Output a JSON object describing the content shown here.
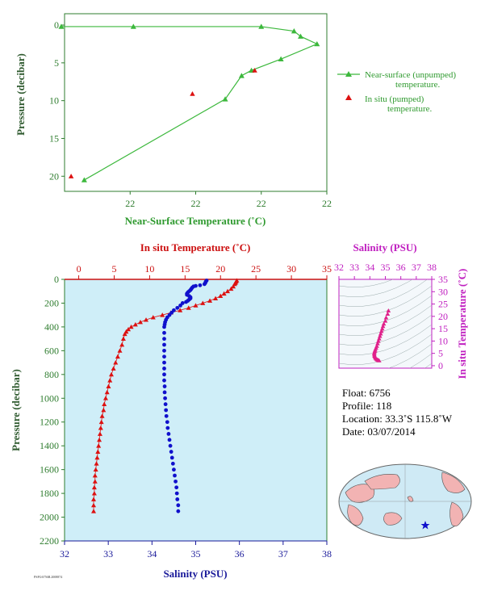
{
  "chart_data": [
    {
      "type": "line",
      "xlabel": "Near-Surface Temperature (˚C)",
      "ylabel": "Pressure (decibar)",
      "x_tick_labels": [
        "22",
        "22",
        "22",
        "22"
      ],
      "x_range": [
        22.0,
        22.8
      ],
      "y_ticks": [
        0,
        5,
        10,
        15,
        20
      ],
      "ylim": [
        22,
        -1.5
      ],
      "series": [
        {
          "name": "Near-surface (unpumped) temperature.",
          "color": "#3cb83c",
          "marker": "triangle",
          "points": [
            [
              21.99,
              0.2
            ],
            [
              22.21,
              0.2
            ],
            [
              22.6,
              0.2
            ],
            [
              22.7,
              0.8
            ],
            [
              22.72,
              1.5
            ],
            [
              22.77,
              2.5
            ],
            [
              22.66,
              4.5
            ],
            [
              22.57,
              6
            ],
            [
              22.54,
              6.7
            ],
            [
              22.49,
              9.8
            ],
            [
              22.06,
              20.5
            ]
          ]
        },
        {
          "name": "In situ (pumped) temperature.",
          "color": "#dd1111",
          "marker": "triangle",
          "points": [
            [
              22.39,
              9.1
            ],
            [
              22.02,
              20
            ],
            [
              22.58,
              6
            ]
          ]
        }
      ]
    },
    {
      "type": "scatter",
      "ylabel": "Pressure (decibar)",
      "top_axis_label": "In situ Temperature (˚C)",
      "bottom_axis_label": "Salinity (PSU)",
      "temp_ticks": [
        0,
        5,
        10,
        15,
        20,
        25,
        30,
        35
      ],
      "sal_ticks": [
        32,
        33,
        34,
        35,
        36,
        37,
        38
      ],
      "pressure_ticks": [
        0,
        200,
        400,
        600,
        800,
        1000,
        1200,
        1400,
        1600,
        1800,
        2000,
        2200
      ],
      "temp_range": [
        -2,
        35
      ],
      "sal_range": [
        32,
        38
      ],
      "pressure_range": [
        0,
        2200
      ],
      "temperature_series": {
        "color": "#dd1111",
        "points": [
          [
            22.3,
            10
          ],
          [
            22.2,
            20
          ],
          [
            22.1,
            30
          ],
          [
            22.0,
            40
          ],
          [
            21.8,
            60
          ],
          [
            21.5,
            80
          ],
          [
            21.0,
            100
          ],
          [
            20.5,
            120
          ],
          [
            20.0,
            140
          ],
          [
            19.3,
            160
          ],
          [
            18.5,
            180
          ],
          [
            17.5,
            200
          ],
          [
            16.5,
            220
          ],
          [
            15.5,
            240
          ],
          [
            14.3,
            260
          ],
          [
            13.0,
            280
          ],
          [
            11.8,
            300
          ],
          [
            10.5,
            320
          ],
          [
            9.5,
            340
          ],
          [
            8.7,
            360
          ],
          [
            8.0,
            380
          ],
          [
            7.4,
            400
          ],
          [
            7.0,
            420
          ],
          [
            6.7,
            440
          ],
          [
            6.5,
            460
          ],
          [
            6.3,
            500
          ],
          [
            6.1,
            550
          ],
          [
            5.8,
            600
          ],
          [
            5.5,
            650
          ],
          [
            5.2,
            700
          ],
          [
            4.9,
            750
          ],
          [
            4.6,
            800
          ],
          [
            4.4,
            850
          ],
          [
            4.2,
            900
          ],
          [
            4.0,
            950
          ],
          [
            3.8,
            1000
          ],
          [
            3.6,
            1050
          ],
          [
            3.5,
            1100
          ],
          [
            3.3,
            1150
          ],
          [
            3.2,
            1200
          ],
          [
            3.1,
            1250
          ],
          [
            3.0,
            1300
          ],
          [
            2.9,
            1350
          ],
          [
            2.8,
            1400
          ],
          [
            2.7,
            1450
          ],
          [
            2.6,
            1500
          ],
          [
            2.5,
            1550
          ],
          [
            2.4,
            1600
          ],
          [
            2.3,
            1650
          ],
          [
            2.3,
            1700
          ],
          [
            2.2,
            1750
          ],
          [
            2.2,
            1800
          ],
          [
            2.1,
            1850
          ],
          [
            2.1,
            1900
          ],
          [
            2.1,
            1950
          ]
        ]
      },
      "salinity_series": {
        "color": "#1010cc",
        "points": [
          [
            35.25,
            10
          ],
          [
            35.23,
            20
          ],
          [
            35.22,
            30
          ],
          [
            35.2,
            40
          ],
          [
            35.1,
            50
          ],
          [
            35.0,
            55
          ],
          [
            34.95,
            60
          ],
          [
            34.92,
            70
          ],
          [
            34.9,
            80
          ],
          [
            34.88,
            90
          ],
          [
            34.85,
            100
          ],
          [
            34.82,
            110
          ],
          [
            34.8,
            120
          ],
          [
            34.8,
            130
          ],
          [
            34.85,
            140
          ],
          [
            34.88,
            150
          ],
          [
            34.88,
            160
          ],
          [
            34.85,
            170
          ],
          [
            34.82,
            180
          ],
          [
            34.78,
            190
          ],
          [
            34.7,
            200
          ],
          [
            34.65,
            220
          ],
          [
            34.58,
            240
          ],
          [
            34.5,
            260
          ],
          [
            34.45,
            280
          ],
          [
            34.4,
            300
          ],
          [
            34.35,
            320
          ],
          [
            34.32,
            340
          ],
          [
            34.3,
            360
          ],
          [
            34.29,
            380
          ],
          [
            34.28,
            400
          ],
          [
            34.28,
            450
          ],
          [
            34.28,
            500
          ],
          [
            34.28,
            550
          ],
          [
            34.28,
            600
          ],
          [
            34.28,
            650
          ],
          [
            34.28,
            700
          ],
          [
            34.28,
            750
          ],
          [
            34.28,
            800
          ],
          [
            34.28,
            850
          ],
          [
            34.29,
            900
          ],
          [
            34.29,
            950
          ],
          [
            34.3,
            1000
          ],
          [
            34.31,
            1050
          ],
          [
            34.32,
            1100
          ],
          [
            34.33,
            1150
          ],
          [
            34.35,
            1200
          ],
          [
            34.36,
            1250
          ],
          [
            34.38,
            1300
          ],
          [
            34.4,
            1350
          ],
          [
            34.42,
            1400
          ],
          [
            34.44,
            1450
          ],
          [
            34.46,
            1500
          ],
          [
            34.48,
            1550
          ],
          [
            34.5,
            1600
          ],
          [
            34.52,
            1650
          ],
          [
            34.54,
            1700
          ],
          [
            34.56,
            1750
          ],
          [
            34.57,
            1800
          ],
          [
            34.58,
            1850
          ],
          [
            34.6,
            1900
          ],
          [
            34.6,
            1950
          ]
        ]
      }
    },
    {
      "type": "scatter",
      "xlabel": "Salinity (PSU)",
      "ylabel": "In situ Temperature (˚C)",
      "x_ticks": [
        32,
        33,
        34,
        35,
        36,
        37,
        38
      ],
      "y_ticks": [
        0,
        5,
        10,
        15,
        20,
        25,
        30,
        35
      ],
      "xlim": [
        32,
        38
      ],
      "ylim": [
        -1,
        35
      ],
      "color": "#e0208a",
      "points": [
        [
          35.2,
          22.3
        ],
        [
          35.15,
          21.0
        ],
        [
          35.05,
          19.5
        ],
        [
          35.0,
          18.2
        ],
        [
          34.9,
          17.0
        ],
        [
          34.85,
          16.0
        ],
        [
          34.8,
          15.0
        ],
        [
          34.75,
          14.0
        ],
        [
          34.7,
          13.0
        ],
        [
          34.65,
          12.0
        ],
        [
          34.6,
          11.0
        ],
        [
          34.55,
          10.0
        ],
        [
          34.5,
          9.0
        ],
        [
          34.45,
          8.0
        ],
        [
          34.4,
          7.2
        ],
        [
          34.35,
          6.5
        ],
        [
          34.32,
          6.0
        ],
        [
          34.3,
          5.5
        ],
        [
          34.28,
          5.0
        ],
        [
          34.29,
          4.5
        ],
        [
          34.3,
          4.0
        ],
        [
          34.33,
          3.6
        ],
        [
          34.36,
          3.2
        ],
        [
          34.4,
          2.9
        ],
        [
          34.45,
          2.6
        ],
        [
          34.5,
          2.4
        ],
        [
          34.55,
          2.2
        ],
        [
          34.6,
          2.1
        ]
      ]
    }
  ],
  "float_info": {
    "float": "Float:  6756",
    "profile": "Profile:  118",
    "location": "Location:  33.3˚S  115.8˚W",
    "date": "Date:  03/07/2014"
  },
  "map": {
    "ocean_color": "#cfeaf5",
    "land_color": "#f2b3b3",
    "marker_color": "#1010cc"
  },
  "footer": {
    "small_print": "PSFG6756B.2008874"
  }
}
